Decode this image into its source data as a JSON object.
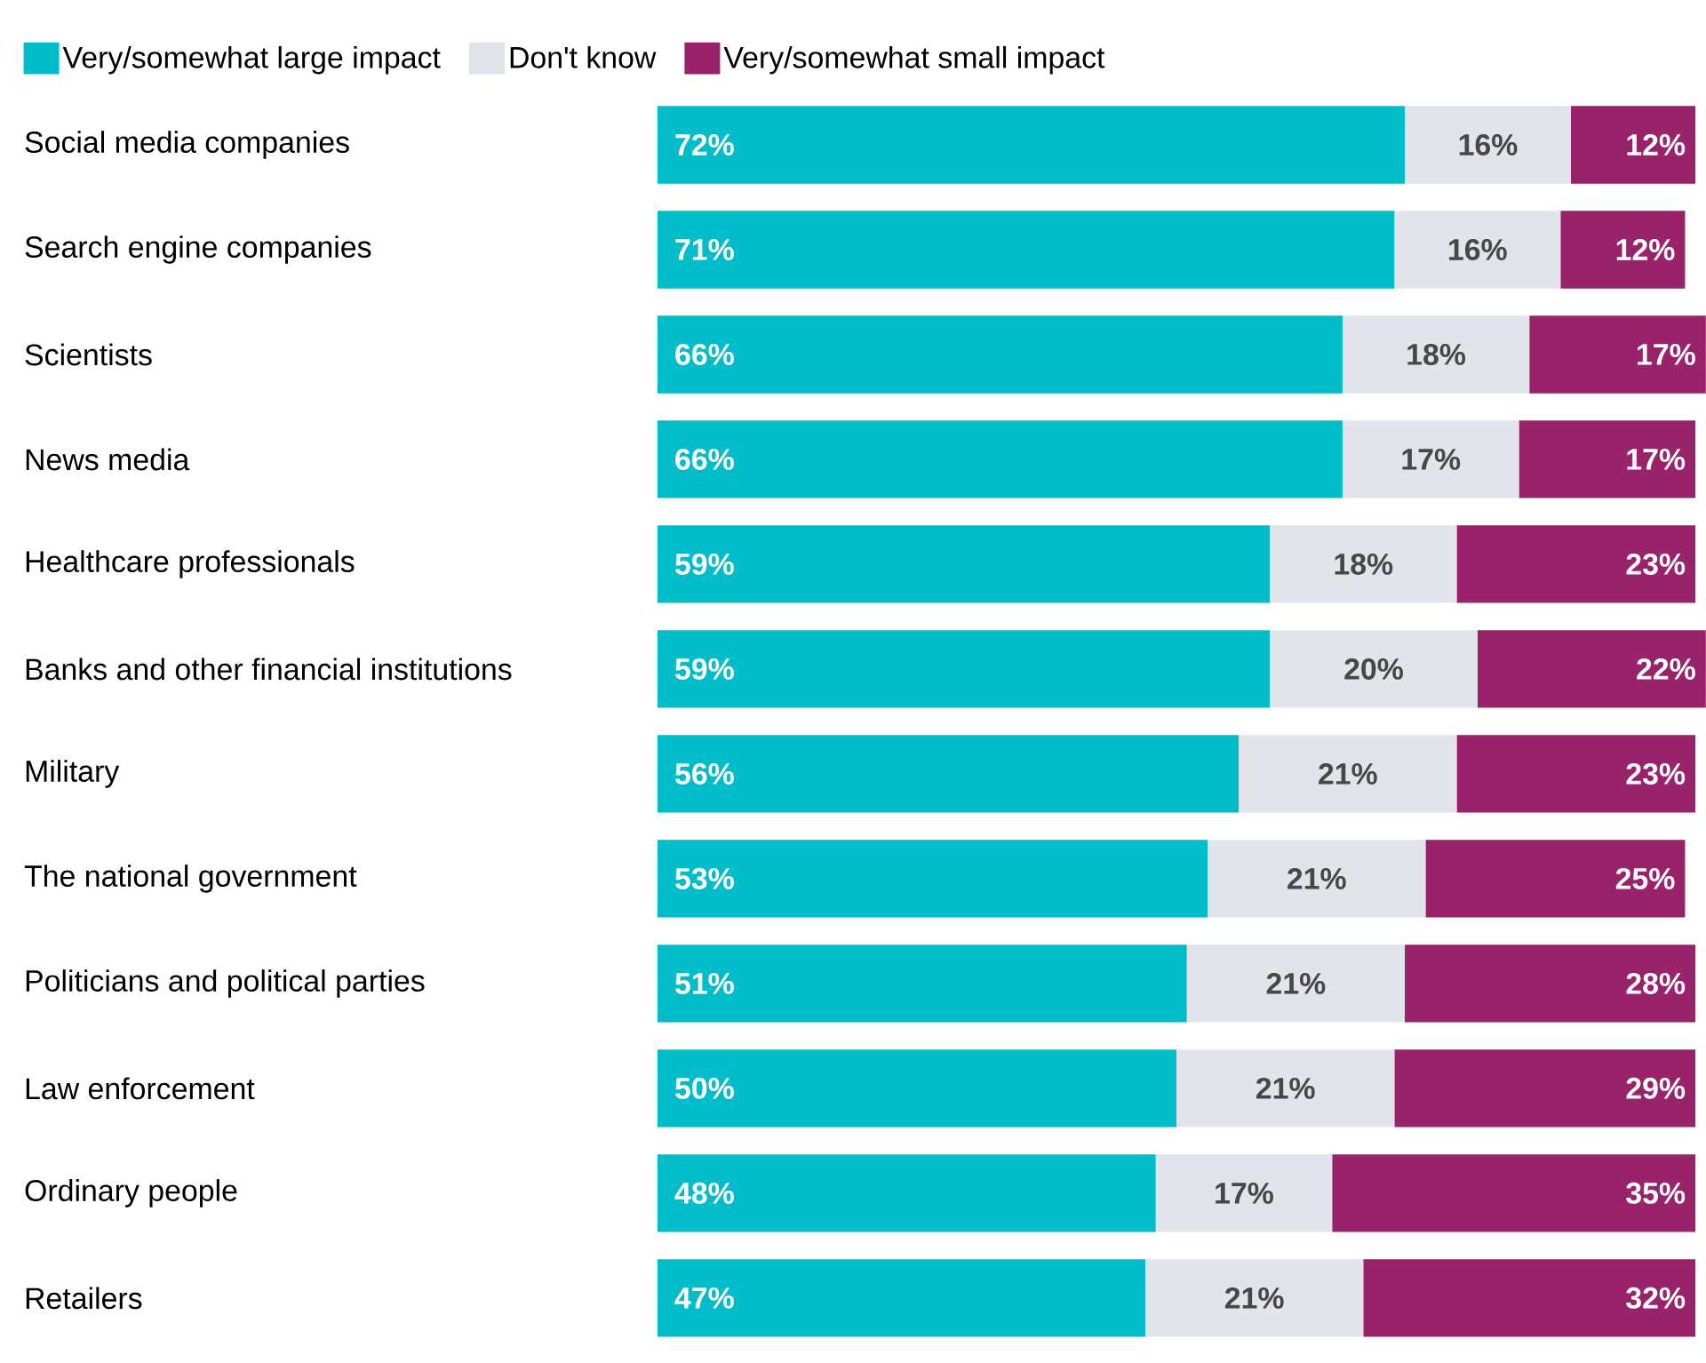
{
  "chart_data": {
    "type": "bar",
    "orientation": "horizontal",
    "stacked": true,
    "legend": "top left",
    "categories": [
      "Social media companies",
      "Search engine companies",
      "Scientists",
      "News media",
      "Healthcare professionals",
      "Banks and other financial institutions",
      "Military",
      "The national government",
      "Politicians and political parties",
      "Law enforcement",
      "Ordinary people",
      "Retailers"
    ],
    "series": [
      {
        "name": "Very/somewhat large impact",
        "color": "#00bdc9",
        "values": [
          72,
          71,
          66,
          66,
          59,
          59,
          56,
          53,
          51,
          50,
          48,
          47
        ],
        "value_labels": [
          "72%",
          "71%",
          "66%",
          "66%",
          "59%",
          "59%",
          "56%",
          "53%",
          "51%",
          "50%",
          "48%",
          "47%"
        ]
      },
      {
        "name": "Don't know",
        "color": "#e2e4eb",
        "values": [
          16,
          16,
          18,
          17,
          18,
          20,
          21,
          21,
          21,
          21,
          17,
          21
        ],
        "value_labels": [
          "16%",
          "16%",
          "18%",
          "17%",
          "18%",
          "20%",
          "21%",
          "21%",
          "21%",
          "21%",
          "17%",
          "21%"
        ]
      },
      {
        "name": "Very/somewhat small impact",
        "color": "#99236b",
        "values": [
          12,
          12,
          17,
          17,
          23,
          22,
          23,
          25,
          28,
          29,
          35,
          32
        ],
        "value_labels": [
          "12%",
          "12%",
          "17%",
          "17%",
          "23%",
          "22%",
          "23%",
          "25%",
          "28%",
          "29%",
          "35%",
          "32%"
        ]
      }
    ]
  }
}
